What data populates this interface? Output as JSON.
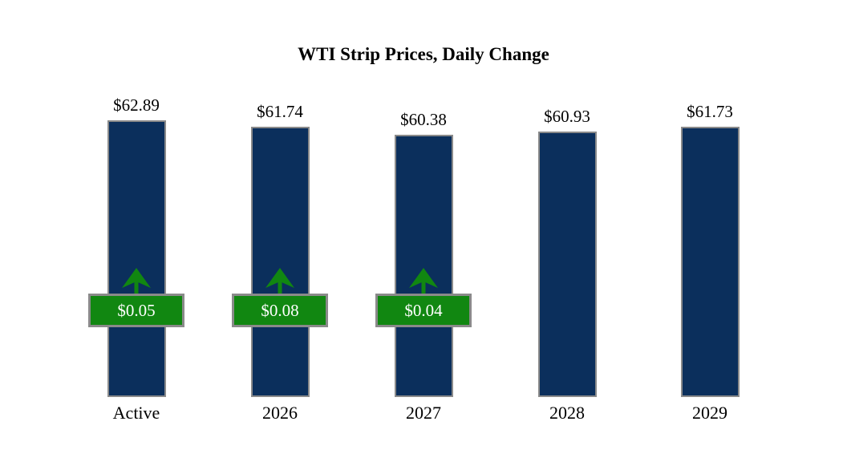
{
  "colors": {
    "background": "#ffffff",
    "bar_fill": "#0b2f5c",
    "bar_border": "#8a8a8a",
    "change_fill": "#118711",
    "change_border": "#8a8a8a",
    "change_text": "#ffffff",
    "arrow": "#118711",
    "label_text": "#000000"
  },
  "chart_data": {
    "type": "bar",
    "title": "WTI Strip Prices, Daily Change",
    "categories": [
      "Active",
      "2026",
      "2027",
      "2028",
      "2029"
    ],
    "values": [
      62.89,
      61.74,
      60.38,
      60.93,
      61.73
    ],
    "value_labels": [
      "$62.89",
      "$61.74",
      "$60.38",
      "$60.93",
      "$61.73"
    ],
    "daily_change": {
      "values": [
        0.05,
        0.08,
        0.04,
        null,
        null
      ],
      "labels": [
        "$0.05",
        "$0.08",
        "$0.04",
        null,
        null
      ],
      "direction": [
        "up",
        "up",
        "up",
        null,
        null
      ]
    },
    "xlabel": "",
    "ylabel": "",
    "grid": false,
    "legend": null,
    "y_axis_hidden": true
  }
}
